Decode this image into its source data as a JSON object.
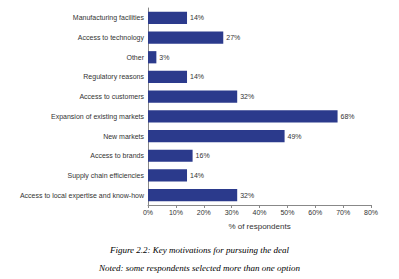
{
  "chart_data": {
    "type": "bar",
    "orientation": "horizontal",
    "title": "Figure 2.2: Key motivations for pursuing the deal",
    "subtitle": "Noted: some respondents selected more than one option",
    "xlabel": "% of respondents",
    "categories": [
      "Manufacturing facilities",
      "Access to technology",
      "Other",
      "Regulatory reasons",
      "Access to customers",
      "Expansion of existing markets",
      "New markets",
      "Access to brands",
      "Supply chain efficiencies",
      "Access to local expertise and know-how"
    ],
    "values": [
      14,
      27,
      3,
      14,
      32,
      68,
      49,
      16,
      14,
      32
    ],
    "value_labels": [
      "14%",
      "27%",
      "3%",
      "14%",
      "32%",
      "68%",
      "49%",
      "16%",
      "14%",
      "32%"
    ],
    "data_labels": true,
    "color": "#2b3a8c",
    "xlim": [
      0,
      80
    ],
    "xticks": [
      {
        "value": 0,
        "label": "0%"
      },
      {
        "value": 10,
        "label": "10%"
      },
      {
        "value": 20,
        "label": "20%"
      },
      {
        "value": 30,
        "label": "30%"
      },
      {
        "value": 40,
        "label": "40%"
      },
      {
        "value": 50,
        "label": "50%"
      },
      {
        "value": 60,
        "label": "60%"
      },
      {
        "value": 70,
        "label": "70%"
      },
      {
        "value": 80,
        "label": "80%"
      }
    ],
    "grid": false
  }
}
